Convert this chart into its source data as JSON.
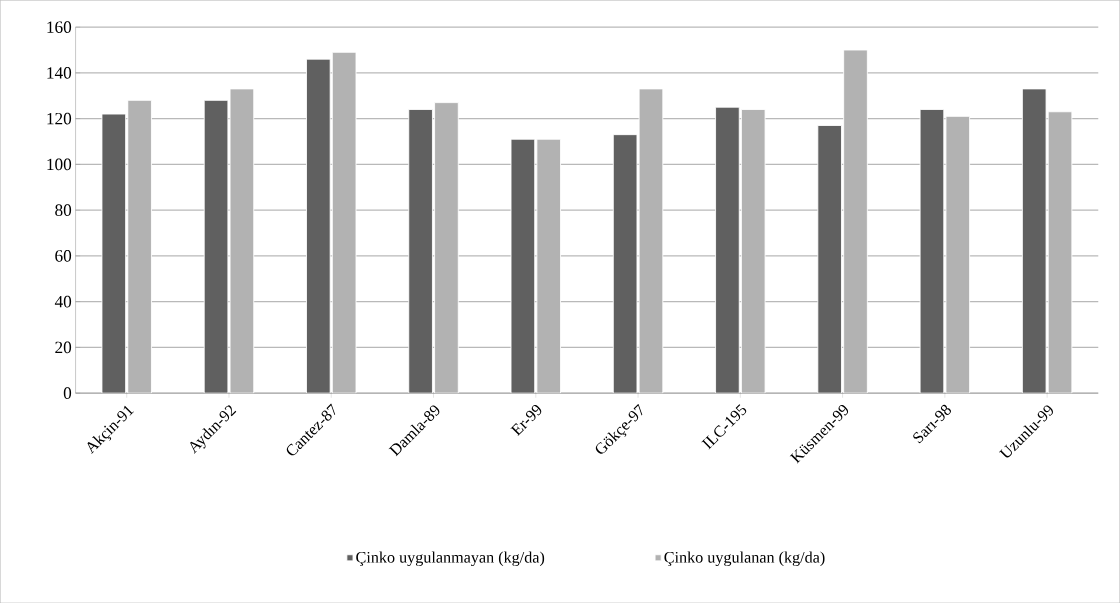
{
  "chart_data": {
    "type": "bar",
    "categories": [
      "Akçin-91",
      "Aydın-92",
      "Cantez-87",
      "Damla-89",
      "Er-99",
      "Gökçe-97",
      "ILC-195",
      "Küsmen-99",
      "Sarı-98",
      "Uzunlu-99"
    ],
    "series": [
      {
        "name": "Çinko uygulanmayan (kg/da)",
        "color": "#606060",
        "values": [
          122,
          128,
          146,
          124,
          111,
          113,
          125,
          117,
          124,
          133
        ]
      },
      {
        "name": "Çinko uygulanan (kg/da)",
        "color": "#b2b2b2",
        "values": [
          128,
          133,
          149,
          127,
          111,
          133,
          124,
          150,
          121,
          123
        ]
      }
    ],
    "ylim": [
      0,
      160
    ],
    "yticks": [
      0,
      20,
      40,
      60,
      80,
      100,
      120,
      140,
      160
    ],
    "grid": "y",
    "legend": "bottom"
  }
}
